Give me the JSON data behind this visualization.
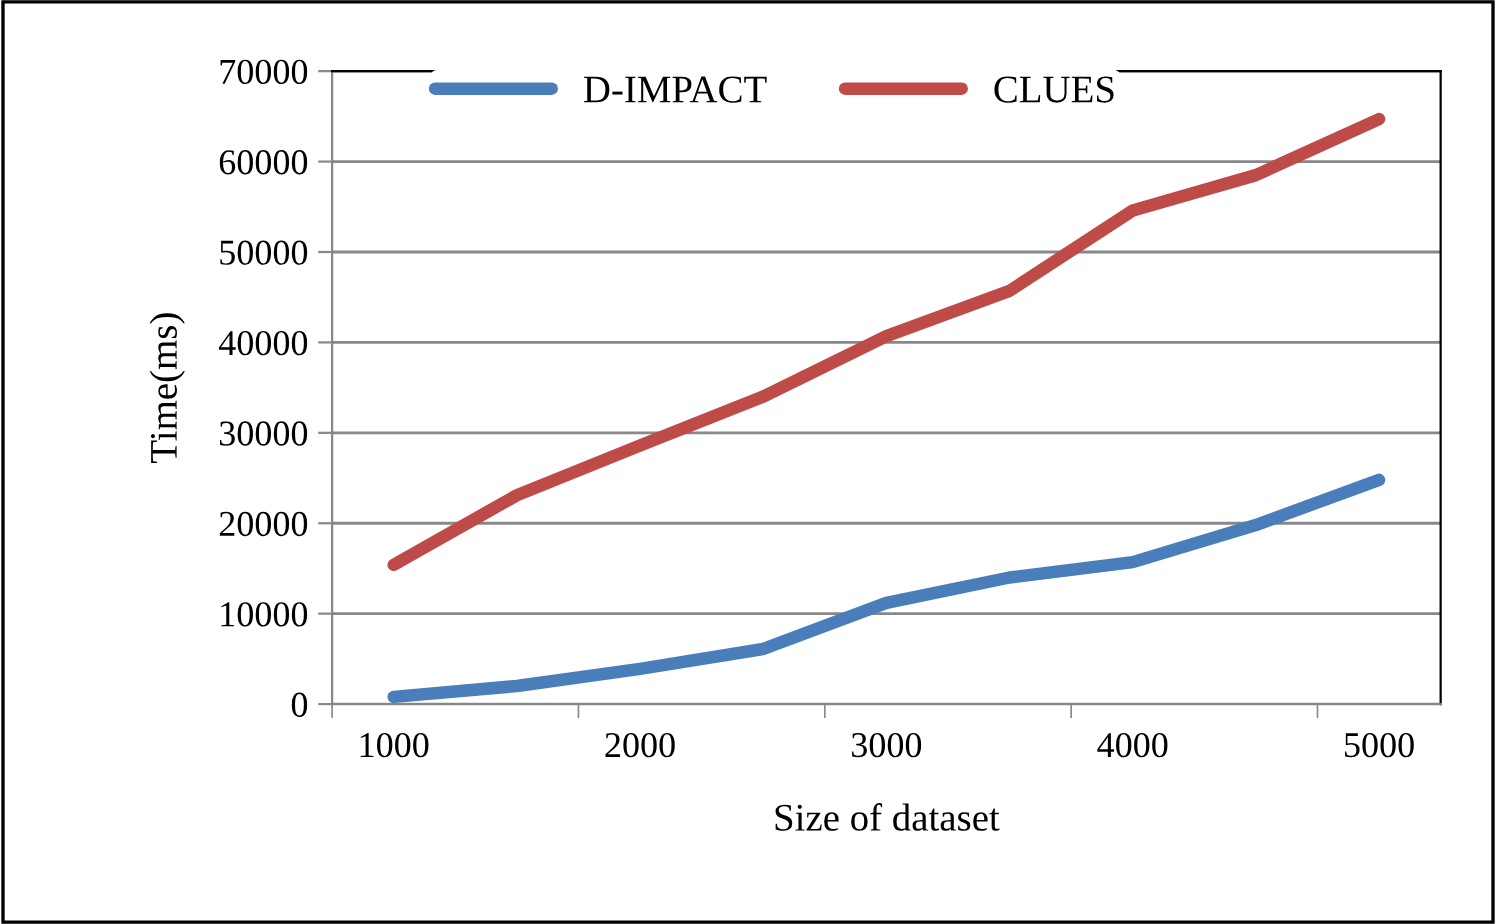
{
  "chart_data": {
    "type": "line",
    "xlabel": "Size of dataset",
    "ylabel": "Time(ms)",
    "categories": [
      "1000",
      null,
      "2000",
      null,
      "3000",
      null,
      "4000",
      null,
      "5000"
    ],
    "series": [
      {
        "name": "D-IMPACT",
        "color": "#4a7ebb",
        "values": [
          800,
          2000,
          3900,
          6100,
          11200,
          14000,
          15700,
          19800,
          24800
        ]
      },
      {
        "name": "CLUES",
        "color": "#be4b48",
        "values": [
          15400,
          23100,
          28600,
          34000,
          40700,
          45700,
          54600,
          58500,
          64700
        ]
      }
    ],
    "ylim": [
      0,
      70000
    ],
    "yticks": [
      0,
      10000,
      20000,
      30000,
      40000,
      50000,
      60000,
      70000
    ],
    "grid": "y",
    "legend": "top",
    "marker": "none",
    "line_style": "solid"
  }
}
